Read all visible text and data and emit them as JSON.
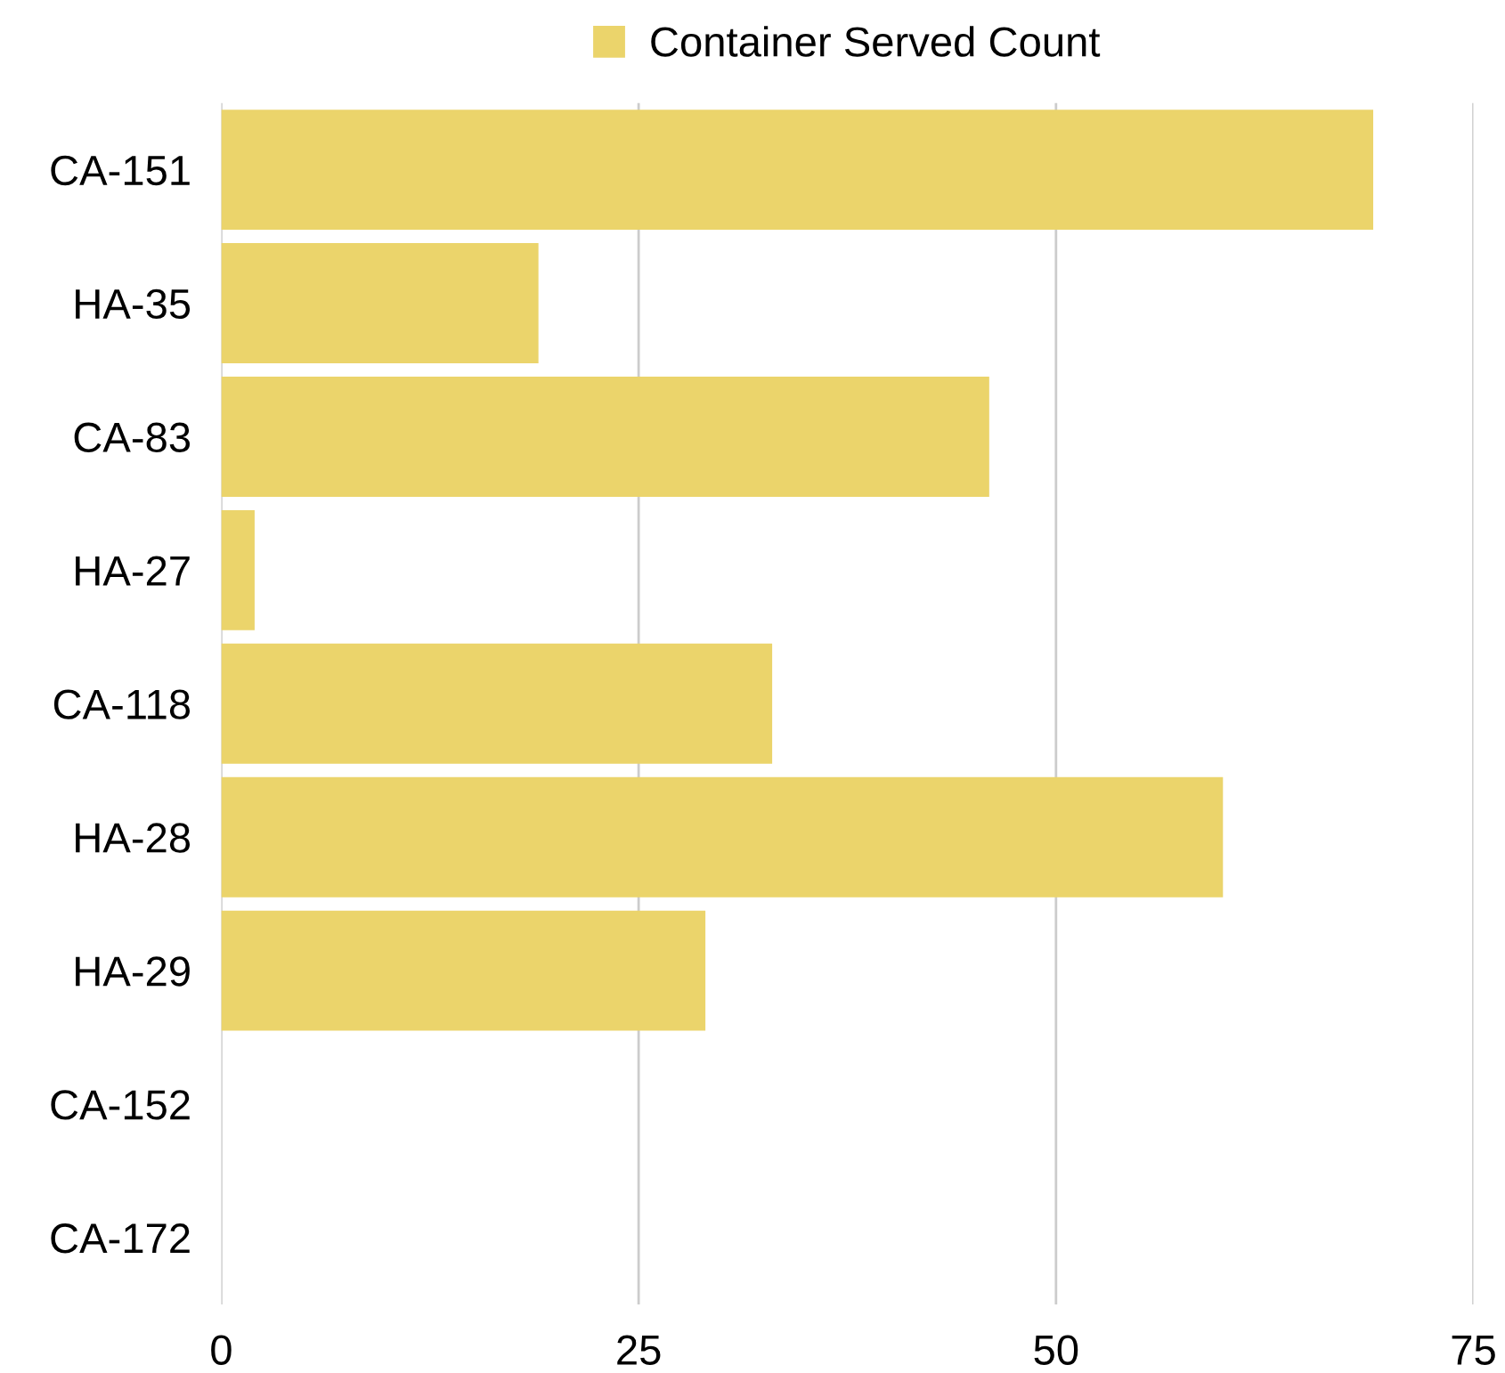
{
  "chart_data": {
    "type": "bar",
    "orientation": "horizontal",
    "categories": [
      "CA-151",
      "HA-35",
      "CA-83",
      "HA-27",
      "CA-118",
      "HA-28",
      "HA-29",
      "CA-152",
      "CA-172"
    ],
    "series": [
      {
        "name": "Container Served Count",
        "color": "#ebd46b",
        "values": [
          69,
          19,
          46,
          2,
          33,
          60,
          29,
          0,
          0
        ]
      }
    ],
    "xlim": [
      0,
      75
    ],
    "xticks": [
      0,
      25,
      50,
      75
    ],
    "grid": "x",
    "legend": "top"
  }
}
